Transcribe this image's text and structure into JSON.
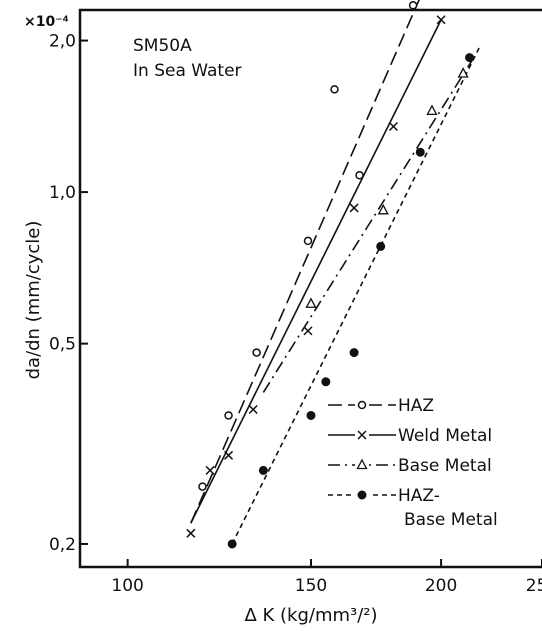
{
  "chart_data": {
    "type": "scatter",
    "title": "",
    "annotation": [
      "SM50A",
      "In Sea Water"
    ],
    "xlabel": "Δ K (kg/mm³/²)",
    "ylabel": "da/dn (mm/cycle)",
    "y_multiplier": "×10⁻⁴",
    "x_scale": "log",
    "y_scale": "log",
    "xlim": [
      90,
      250
    ],
    "ylim": [
      0.18,
      2.3
    ],
    "x_ticks": [
      100,
      150,
      200,
      250
    ],
    "x_tick_labels": [
      "100",
      "150",
      "200",
      "250"
    ],
    "y_ticks": [
      0.2,
      0.5,
      1.0,
      2.0
    ],
    "y_tick_labels": [
      "0,2",
      "0,5",
      "1,0",
      "2,0"
    ],
    "legend_position": "lower-right",
    "series": [
      {
        "name": "HAZ",
        "marker": "open-circle",
        "line": "long-dash",
        "points": [
          [
            118,
            0.26
          ],
          [
            125,
            0.36
          ],
          [
            133,
            0.48
          ],
          [
            149,
            0.8
          ],
          [
            158,
            1.6
          ],
          [
            167,
            1.08
          ],
          [
            188,
            2.35
          ]
        ],
        "fit": [
          [
            115,
            0.22
          ],
          [
            192,
            2.5
          ]
        ]
      },
      {
        "name": "Weld Metal",
        "marker": "cross",
        "line": "solid",
        "points": [
          [
            115,
            0.21
          ],
          [
            120,
            0.28
          ],
          [
            125,
            0.3
          ],
          [
            132,
            0.37
          ],
          [
            149,
            0.53
          ],
          [
            165,
            0.93
          ],
          [
            180,
            1.35
          ],
          [
            200,
            2.2
          ]
        ],
        "fit": [
          [
            115,
            0.22
          ],
          [
            200,
            2.2
          ]
        ]
      },
      {
        "name": "Base Metal",
        "marker": "open-triangle",
        "line": "dash-dot",
        "points": [
          [
            150,
            0.6
          ],
          [
            176,
            0.92
          ],
          [
            196,
            1.45
          ],
          [
            210,
            1.72
          ]
        ],
        "fit": [
          [
            135,
            0.4
          ],
          [
            215,
            1.85
          ]
        ]
      },
      {
        "name": "HAZ-\nBase Metal",
        "name_lines": [
          "HAZ-",
          "Base Metal"
        ],
        "marker": "filled-circle",
        "line": "short-dash",
        "points": [
          [
            126,
            0.2
          ],
          [
            135,
            0.28
          ],
          [
            150,
            0.36
          ],
          [
            155,
            0.42
          ],
          [
            165,
            0.48
          ],
          [
            175,
            0.78
          ],
          [
            191,
            1.2
          ],
          [
            213,
            1.85
          ]
        ],
        "fit": [
          [
            126,
            0.2
          ],
          [
            218,
            1.95
          ]
        ]
      }
    ]
  }
}
